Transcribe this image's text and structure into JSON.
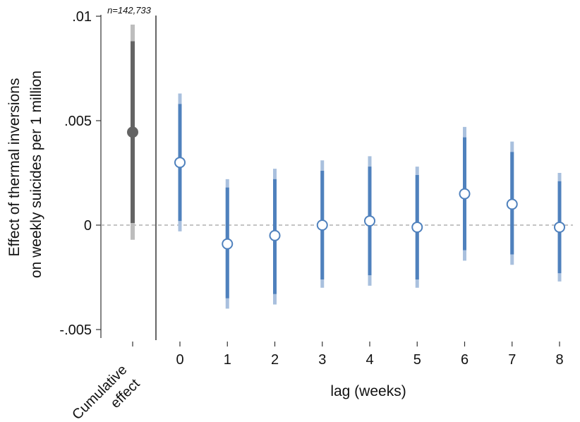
{
  "chart_data": {
    "type": "scatter",
    "annotation": "n=142,733",
    "ylabel_line1": "Effect of thermal inversions",
    "ylabel_line2": "on weekly suicides per 1 million",
    "xlabel": "lag (weeks)",
    "ylim": [
      -0.005,
      0.01
    ],
    "y_ticks": [
      {
        "value": -0.005,
        "label": "-.005"
      },
      {
        "value": 0,
        "label": "0"
      },
      {
        "value": 0.005,
        "label": ".005"
      },
      {
        "value": 0.01,
        "label": ".01"
      }
    ],
    "reference_line": {
      "y": 0,
      "style": "dashed"
    },
    "cumulative": {
      "label_line1": "Cumulative",
      "label_line2": "effect",
      "estimate": 0.00445,
      "ci_inner": [
        0.0001,
        0.0088
      ],
      "ci_outer": [
        -0.0007,
        0.0096
      ],
      "color": "#646464",
      "ci_outer_color": "#bdbdbd"
    },
    "lags": {
      "color": "#4f81bd",
      "ci_outer_color": "#a9c0de",
      "points": [
        {
          "lag": 0,
          "label": "0",
          "estimate": 0.003,
          "ci_inner": [
            0.0002,
            0.0058
          ],
          "ci_outer": [
            -0.0003,
            0.0063
          ]
        },
        {
          "lag": 1,
          "label": "1",
          "estimate": -0.0009,
          "ci_inner": [
            -0.0035,
            0.0018
          ],
          "ci_outer": [
            -0.004,
            0.0022
          ]
        },
        {
          "lag": 2,
          "label": "2",
          "estimate": -0.0005,
          "ci_inner": [
            -0.0033,
            0.0022
          ],
          "ci_outer": [
            -0.0038,
            0.0027
          ]
        },
        {
          "lag": 3,
          "label": "3",
          "estimate": 0.0,
          "ci_inner": [
            -0.0026,
            0.0026
          ],
          "ci_outer": [
            -0.003,
            0.0031
          ]
        },
        {
          "lag": 4,
          "label": "4",
          "estimate": 0.0002,
          "ci_inner": [
            -0.0024,
            0.0028
          ],
          "ci_outer": [
            -0.0029,
            0.0033
          ]
        },
        {
          "lag": 5,
          "label": "5",
          "estimate": -0.0001,
          "ci_inner": [
            -0.0026,
            0.0024
          ],
          "ci_outer": [
            -0.003,
            0.0028
          ]
        },
        {
          "lag": 6,
          "label": "6",
          "estimate": 0.0015,
          "ci_inner": [
            -0.0012,
            0.0042
          ],
          "ci_outer": [
            -0.0017,
            0.0047
          ]
        },
        {
          "lag": 7,
          "label": "7",
          "estimate": 0.001,
          "ci_inner": [
            -0.0014,
            0.0035
          ],
          "ci_outer": [
            -0.0019,
            0.004
          ]
        },
        {
          "lag": 8,
          "label": "8",
          "estimate": -0.0001,
          "ci_inner": [
            -0.0023,
            0.0021
          ],
          "ci_outer": [
            -0.0027,
            0.0025
          ]
        }
      ]
    },
    "grid": false,
    "legend": "none"
  }
}
